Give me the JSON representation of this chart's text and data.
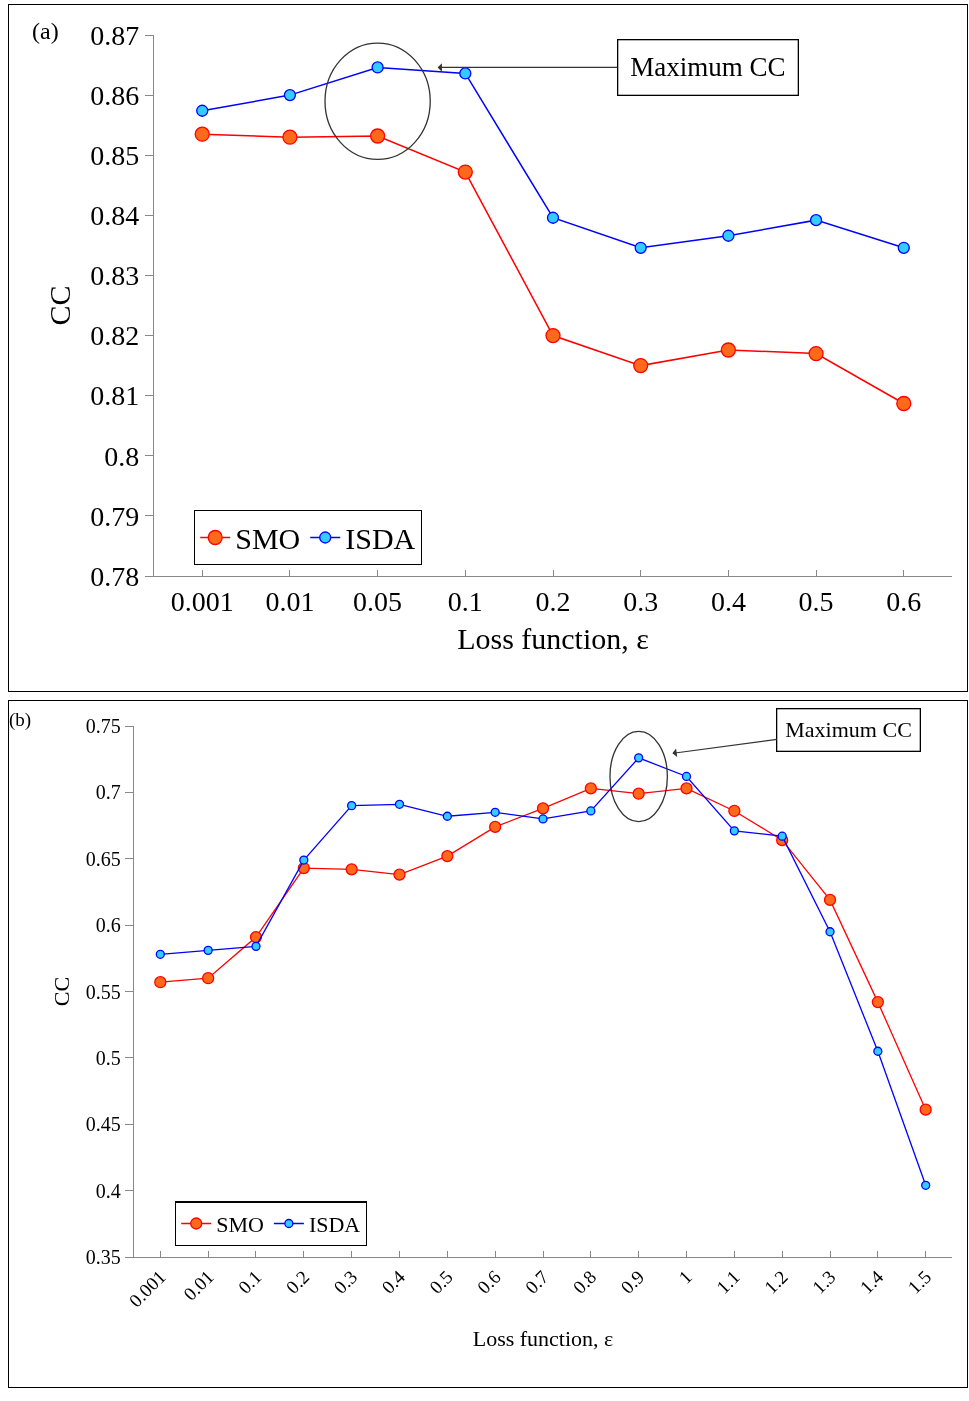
{
  "chart_data": [
    {
      "type": "line",
      "xlabel": "Loss function, ε",
      "ylabel": "CC",
      "categories": [
        "0.001",
        "0.01",
        "0.05",
        "0.1",
        "0.2",
        "0.3",
        "0.4",
        "0.5",
        "0.6"
      ],
      "series": [
        {
          "name": "SMO",
          "color": "#ff0000",
          "values": [
            0.8535,
            0.853,
            0.8532,
            0.8472,
            0.82,
            0.815,
            0.8176,
            0.817,
            0.8087
          ]
        },
        {
          "name": "ISDA",
          "color": "#0000ff",
          "values": [
            0.8574,
            0.86,
            0.8646,
            0.8636,
            0.8396,
            0.8346,
            0.8366,
            0.8392,
            0.8346
          ]
        }
      ],
      "ylim": [
        0.78,
        0.87
      ],
      "yticks": [
        0.78,
        0.79,
        0.8,
        0.81,
        0.82,
        0.83,
        0.84,
        0.85,
        0.86,
        0.87
      ],
      "grid": false,
      "legend": "bottom left",
      "marker": "circle",
      "line_style": "solid",
      "annotations": [
        "(a)",
        {
          "text": "Maximum CC",
          "x": "0.05",
          "y": 0.8646
        }
      ]
    },
    {
      "type": "line",
      "xlabel": "Loss function, ε",
      "ylabel": "CC",
      "categories": [
        "0.001",
        "0.01",
        "0.1",
        "0.2",
        "0.3",
        "0.4",
        "0.5",
        "0.6",
        "0.7",
        "0.8",
        "0.9",
        "1",
        "1.1",
        "1.2",
        "1.3",
        "1.4",
        "1.5"
      ],
      "series": [
        {
          "name": "SMO",
          "color": "#ff0000",
          "values": [
            0.557,
            0.56,
            0.591,
            0.643,
            0.642,
            0.638,
            0.652,
            0.674,
            0.688,
            0.703,
            0.699,
            0.703,
            0.686,
            0.664,
            0.619,
            0.542,
            0.461
          ]
        },
        {
          "name": "ISDA",
          "color": "#0000ff",
          "values": [
            0.578,
            0.581,
            0.584,
            0.649,
            0.69,
            0.691,
            0.682,
            0.685,
            0.68,
            0.686,
            0.726,
            0.712,
            0.671,
            0.667,
            0.595,
            0.505,
            0.404
          ]
        }
      ],
      "ylim": [
        0.35,
        0.75
      ],
      "yticks": [
        0.35,
        0.4,
        0.45,
        0.5,
        0.55,
        0.6,
        0.65,
        0.7,
        0.75
      ],
      "grid": false,
      "legend": "bottom left",
      "marker": "circle",
      "line_style": "solid",
      "annotations": [
        "(b)",
        {
          "text": "Maximum CC",
          "x": "0.9",
          "y": 0.726
        }
      ]
    }
  ]
}
